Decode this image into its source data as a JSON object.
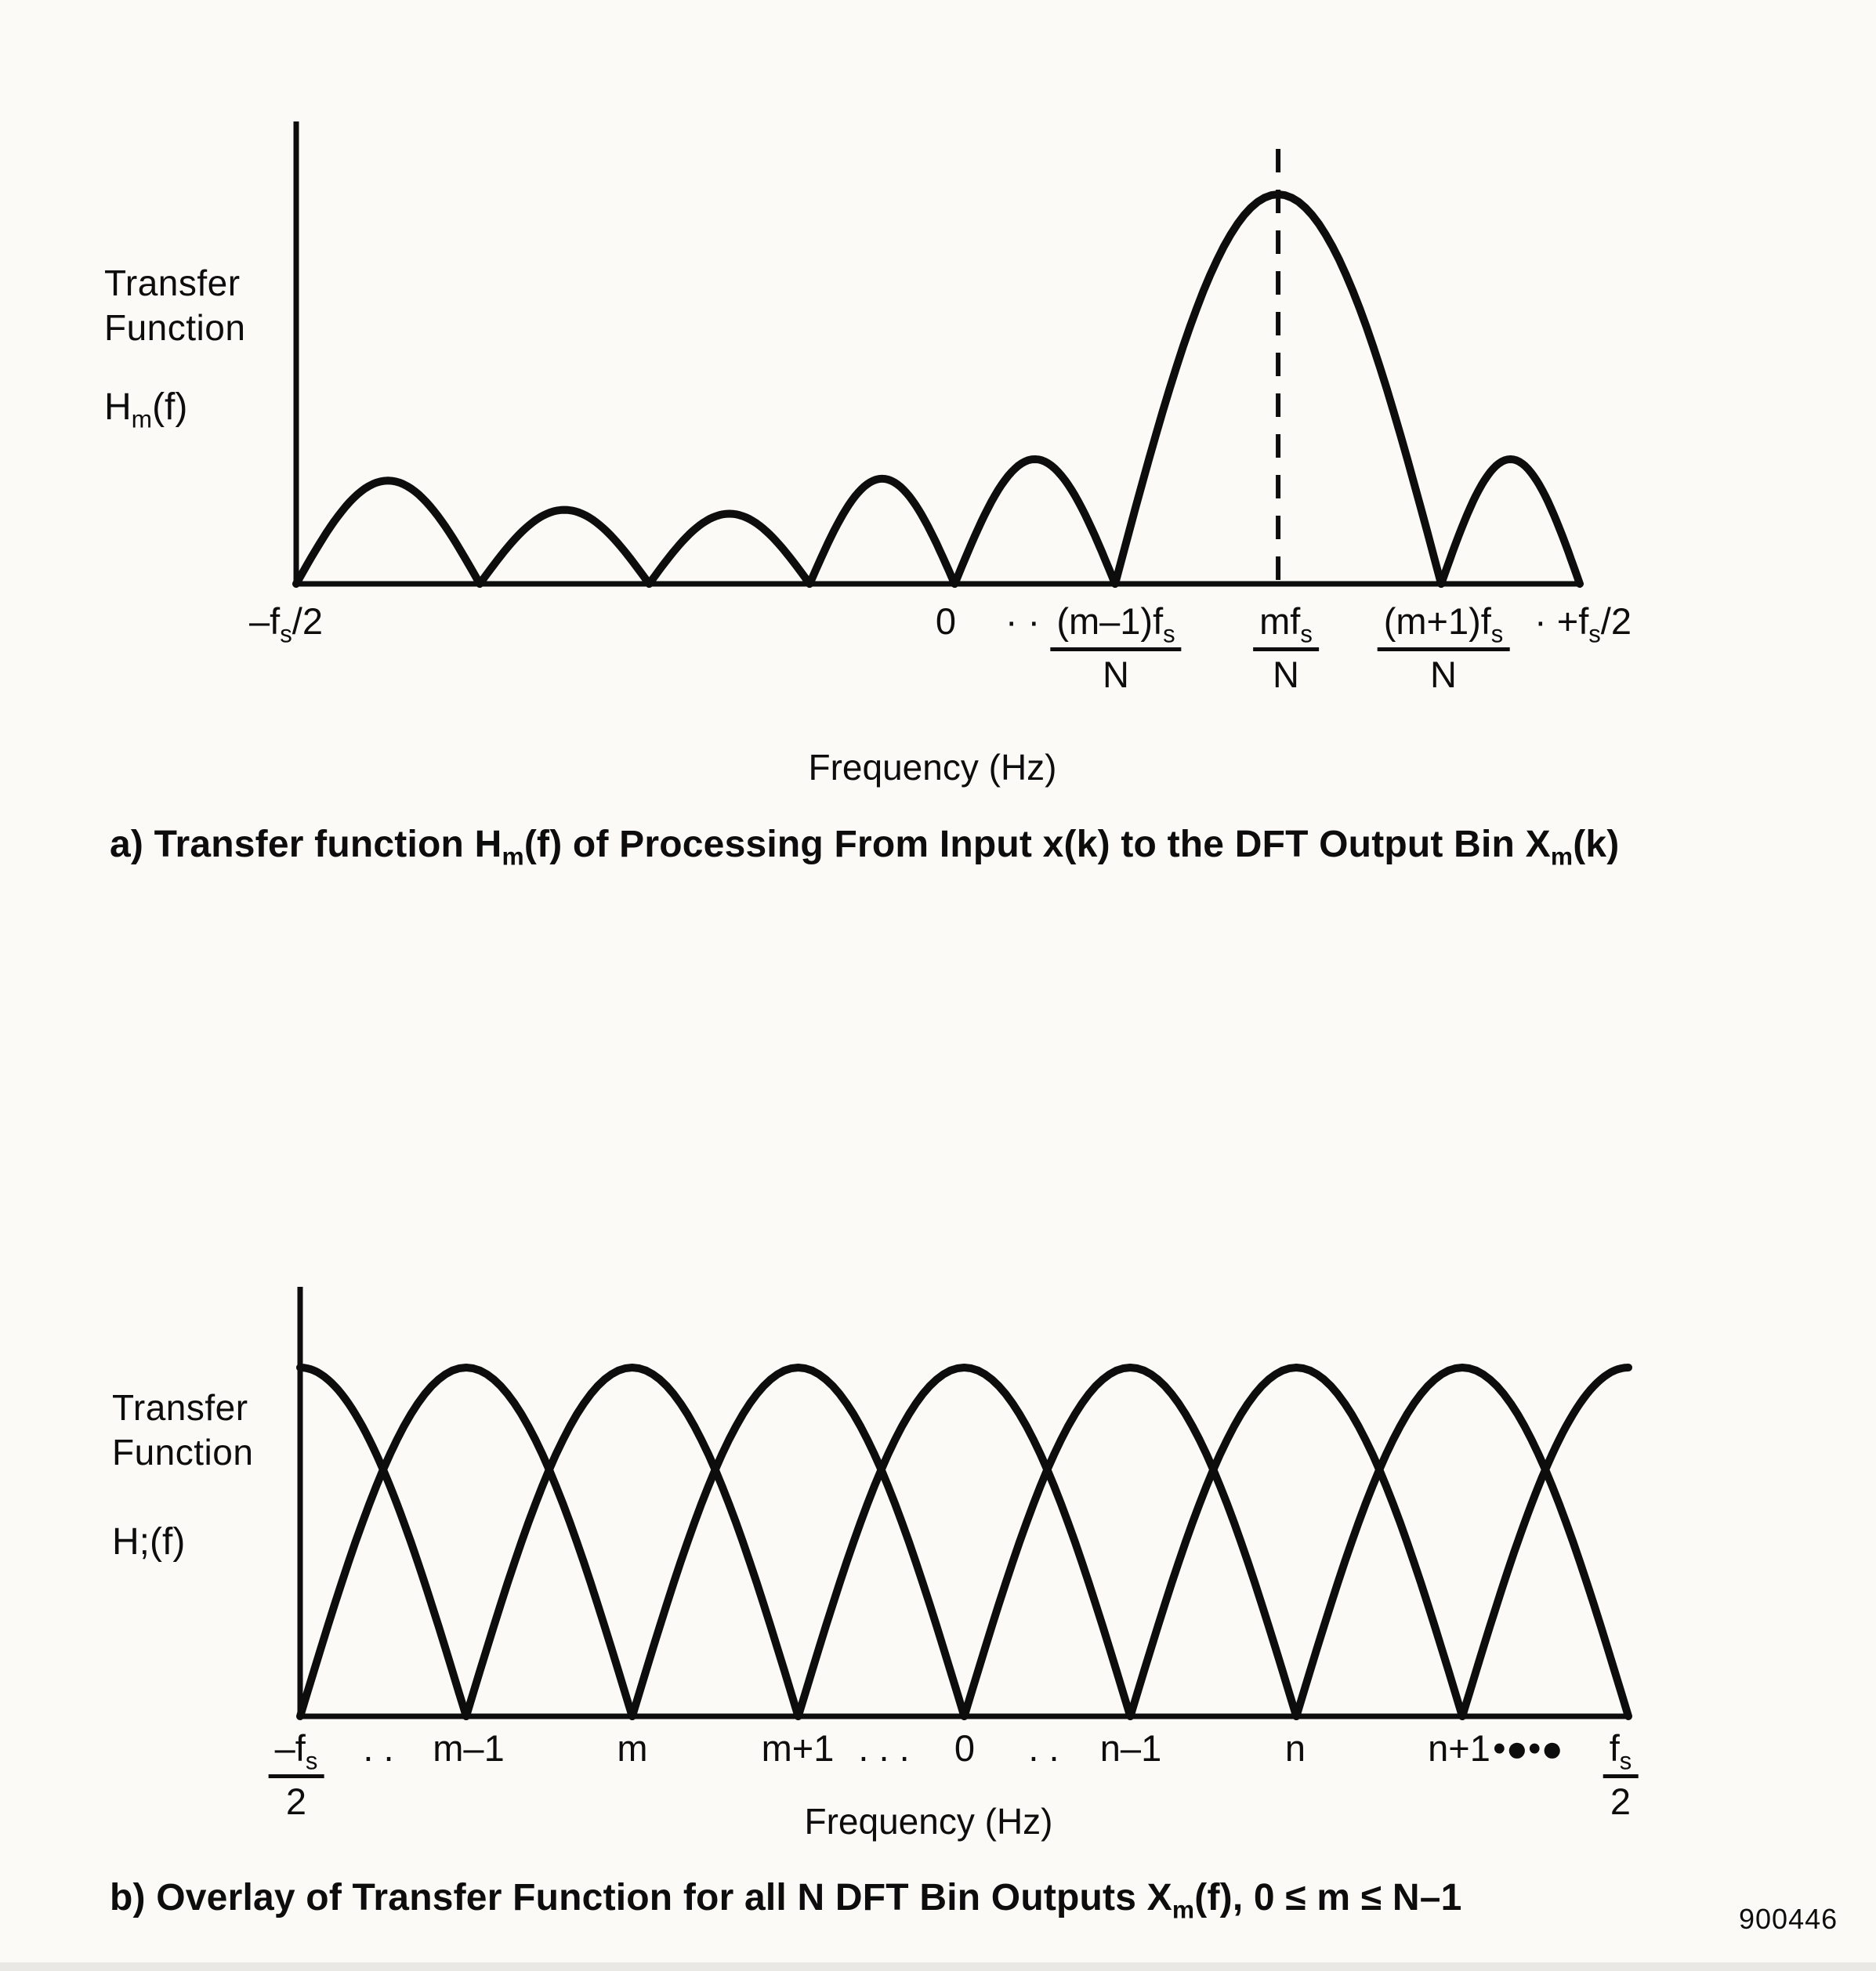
{
  "page": {
    "bg": "#fbfaf7",
    "ink": "#0d0d0d"
  },
  "footer": {
    "code": "900446"
  },
  "chart_data": [
    {
      "id": "a",
      "type": "line",
      "title": "Transfer function Hm(f) of Processing From Input x(k) to the DFT Output Bin Xm(k)",
      "caption_segments": [
        {
          "t": "a) Transfer function H"
        },
        {
          "sub": "m"
        },
        {
          "t": "(f) of Processing From Input x(k) to the DFT Output Bin X"
        },
        {
          "sub": "m"
        },
        {
          "t": "(k)"
        }
      ],
      "ylabel_lines": [
        "Transfer",
        "Function"
      ],
      "ylabel_formula_segments": [
        {
          "t": "H"
        },
        {
          "sub": "m"
        },
        {
          "t": "(f)"
        }
      ],
      "xlabel": "Frequency (Hz)",
      "x_range_labels": [
        "-fs/2",
        "+fs/2"
      ],
      "curve": {
        "shape": "abs-sinc-lobes",
        "main_lobe_center_label": "m·fs/N",
        "dashed_frac": 0.765,
        "lobes": [
          {
            "s": 0.0,
            "e": 0.143,
            "h": 0.265
          },
          {
            "s": 0.143,
            "e": 0.275,
            "h": 0.19
          },
          {
            "s": 0.275,
            "e": 0.4,
            "h": 0.18
          },
          {
            "s": 0.4,
            "e": 0.513,
            "h": 0.27
          },
          {
            "s": 0.513,
            "e": 0.638,
            "h": 0.32
          },
          {
            "s": 0.638,
            "e": 0.892,
            "h": 1.0
          },
          {
            "s": 0.892,
            "e": 1.0,
            "h": 0.32
          }
        ]
      },
      "xticks": [
        {
          "kind": "plain",
          "x": 365,
          "segs": [
            {
              "t": "–f"
            },
            {
              "sub": "s"
            },
            {
              "t": "/2"
            }
          ]
        },
        {
          "kind": "plain",
          "x": 1207,
          "segs": [
            {
              "t": "0"
            }
          ]
        },
        {
          "kind": "plain",
          "x": 1305,
          "segs": [
            {
              "t": "· ·"
            }
          ]
        },
        {
          "kind": "frac",
          "x": 1424,
          "num": [
            {
              "t": "(m–1)f"
            },
            {
              "sub": "s"
            }
          ],
          "den": [
            {
              "t": "N"
            }
          ]
        },
        {
          "kind": "frac",
          "x": 1641,
          "num": [
            {
              "t": "mf"
            },
            {
              "sub": "s"
            }
          ],
          "den": [
            {
              "t": "N"
            }
          ]
        },
        {
          "kind": "frac",
          "x": 1842,
          "num": [
            {
              "t": "(m+1)f"
            },
            {
              "sub": "s"
            }
          ],
          "den": [
            {
              "t": "N"
            }
          ]
        },
        {
          "kind": "plain",
          "x": 2020,
          "segs": [
            {
              "t": "· +f"
            },
            {
              "sub": "s"
            },
            {
              "t": "/2"
            }
          ]
        }
      ],
      "layout": {
        "x0": 378,
        "x1": 2016,
        "base": 745,
        "ytop": 155,
        "amp": 497,
        "curve_w": 10,
        "axis_w": 7,
        "tick_y": 768,
        "dash_top": 190
      }
    },
    {
      "id": "b",
      "type": "line",
      "title": "Overlay of Transfer Function for all N DFT Bin Outputs Xm(f), 0 <= m <= N-1",
      "caption_segments": [
        {
          "t": "b) Overlay of Transfer Function for all N DFT Bin Outputs X"
        },
        {
          "sub": "m"
        },
        {
          "t": "(f), 0 ≤ m ≤ N–1"
        }
      ],
      "ylabel_lines": [
        "Transfer",
        "Function"
      ],
      "ylabel_formula_segments": [
        {
          "t": "H;(f)"
        }
      ],
      "xlabel": "Frequency (Hz)",
      "x_range_labels": [
        "-fs/2",
        "fs/2"
      ],
      "curve": {
        "shape": "overlaid-bin-lobes",
        "bins": 9
      },
      "xticks": [
        {
          "kind": "frac",
          "x": 378,
          "num": [
            {
              "t": "–f"
            },
            {
              "sub": "s"
            }
          ],
          "den": [
            {
              "t": "2"
            }
          ]
        },
        {
          "kind": "plain",
          "x": 483,
          "segs": [
            {
              "t": ". ."
            }
          ]
        },
        {
          "kind": "plain",
          "x": 598,
          "segs": [
            {
              "t": "m–1"
            }
          ]
        },
        {
          "kind": "plain",
          "x": 807,
          "segs": [
            {
              "t": "m"
            }
          ]
        },
        {
          "kind": "plain",
          "x": 1018,
          "segs": [
            {
              "t": "m+1"
            }
          ]
        },
        {
          "kind": "plain",
          "x": 1128,
          "segs": [
            {
              "t": ". . ."
            }
          ]
        },
        {
          "kind": "plain",
          "x": 1231,
          "segs": [
            {
              "t": "0"
            }
          ]
        },
        {
          "kind": "plain",
          "x": 1332,
          "segs": [
            {
              "t": ". ."
            }
          ]
        },
        {
          "kind": "plain",
          "x": 1443,
          "segs": [
            {
              "t": "n–1"
            }
          ]
        },
        {
          "kind": "plain",
          "x": 1653,
          "segs": [
            {
              "t": "n"
            }
          ]
        },
        {
          "kind": "plain",
          "x": 1862,
          "segs": [
            {
              "t": "n+1"
            }
          ]
        },
        {
          "kind": "plain",
          "x": 1950,
          "segs": [
            {
              "t": "•●•●"
            }
          ]
        },
        {
          "kind": "frac",
          "x": 2068,
          "num": [
            {
              "t": "f"
            },
            {
              "sub": "s"
            }
          ],
          "den": [
            {
              "t": "2"
            }
          ]
        }
      ],
      "layout": {
        "x0": 383,
        "x1": 2078,
        "base": 2190,
        "ytop": 1642,
        "amp": 445,
        "curve_w": 10,
        "axis_w": 7,
        "tick_y": 2206
      }
    }
  ]
}
